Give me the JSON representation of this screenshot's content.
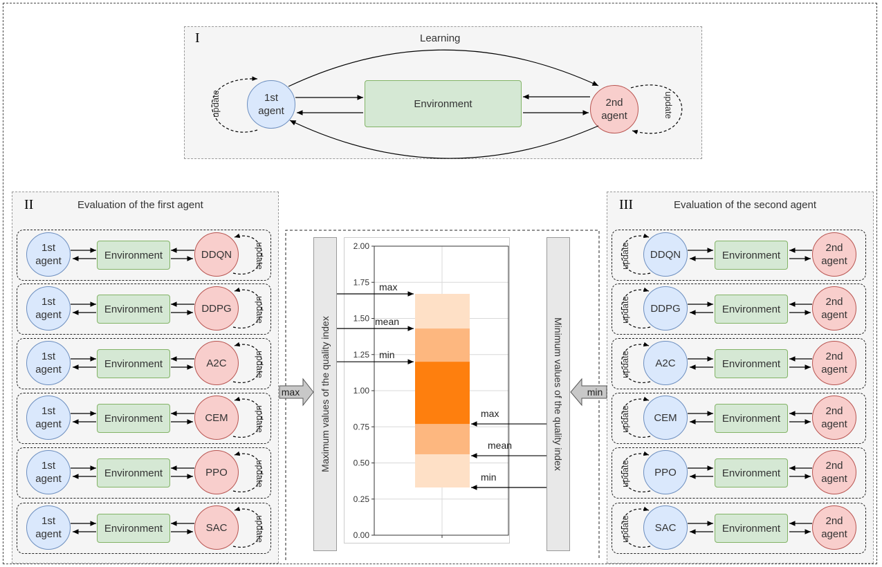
{
  "panel_learning": {
    "roman": "I",
    "title": "Learning",
    "agent1": "1st agent",
    "agent2": "2nd agent",
    "environment": "Environment",
    "update": "update"
  },
  "panel_first": {
    "roman": "II",
    "title": "Evaluation of the first agent",
    "rows": [
      {
        "agent": "1st agent",
        "env": "Environment",
        "algo": "DDQN",
        "update": "update"
      },
      {
        "agent": "1st agent",
        "env": "Environment",
        "algo": "DDPG",
        "update": "update"
      },
      {
        "agent": "1st agent",
        "env": "Environment",
        "algo": "A2C",
        "update": "update"
      },
      {
        "agent": "1st agent",
        "env": "Environment",
        "algo": "CEM",
        "update": "update"
      },
      {
        "agent": "1st agent",
        "env": "Environment",
        "algo": "PPO",
        "update": "update"
      },
      {
        "agent": "1st agent",
        "env": "Environment",
        "algo": "SAC",
        "update": "update"
      }
    ]
  },
  "panel_second": {
    "roman": "III",
    "title": "Evaluation of the second agent",
    "rows": [
      {
        "algo": "DDQN",
        "env": "Environment",
        "agent": "2nd agent",
        "update": "update"
      },
      {
        "algo": "DDPG",
        "env": "Environment",
        "agent": "2nd agent",
        "update": "update"
      },
      {
        "algo": "A2C",
        "env": "Environment",
        "agent": "2nd agent",
        "update": "update"
      },
      {
        "algo": "CEM",
        "env": "Environment",
        "agent": "2nd agent",
        "update": "update"
      },
      {
        "algo": "PPO",
        "env": "Environment",
        "agent": "2nd agent",
        "update": "update"
      },
      {
        "algo": "SAC",
        "env": "Environment",
        "agent": "2nd agent",
        "update": "update"
      }
    ]
  },
  "arrows": {
    "left": "max",
    "right": "min"
  },
  "side_bars": {
    "left": "Maximum values of the quality index",
    "right": "Minimum values of the quality index"
  },
  "colors": {
    "light": "#fee0c6",
    "mid": "#fdb77f",
    "dark": "#fe7f0e"
  },
  "chart_data": {
    "type": "bar",
    "ylim": [
      0,
      2
    ],
    "y_ticks": [
      "0.00",
      "0.25",
      "0.50",
      "0.75",
      "1.00",
      "1.25",
      "1.50",
      "1.75",
      "2.00"
    ],
    "bands": [
      {
        "name": "min-max band",
        "lower": 0.33,
        "upper": 1.67
      },
      {
        "name": "mean band",
        "lower": 0.56,
        "upper": 1.43
      },
      {
        "name": "inner band",
        "lower": 0.77,
        "upper": 1.2
      }
    ],
    "annotations_left": [
      {
        "label": "max",
        "y": 1.67
      },
      {
        "label": "mean",
        "y": 1.43
      },
      {
        "label": "min",
        "y": 1.2
      }
    ],
    "annotations_right": [
      {
        "label": "max",
        "y": 0.77
      },
      {
        "label": "mean",
        "y": 0.55
      },
      {
        "label": "min",
        "y": 0.33
      }
    ]
  }
}
